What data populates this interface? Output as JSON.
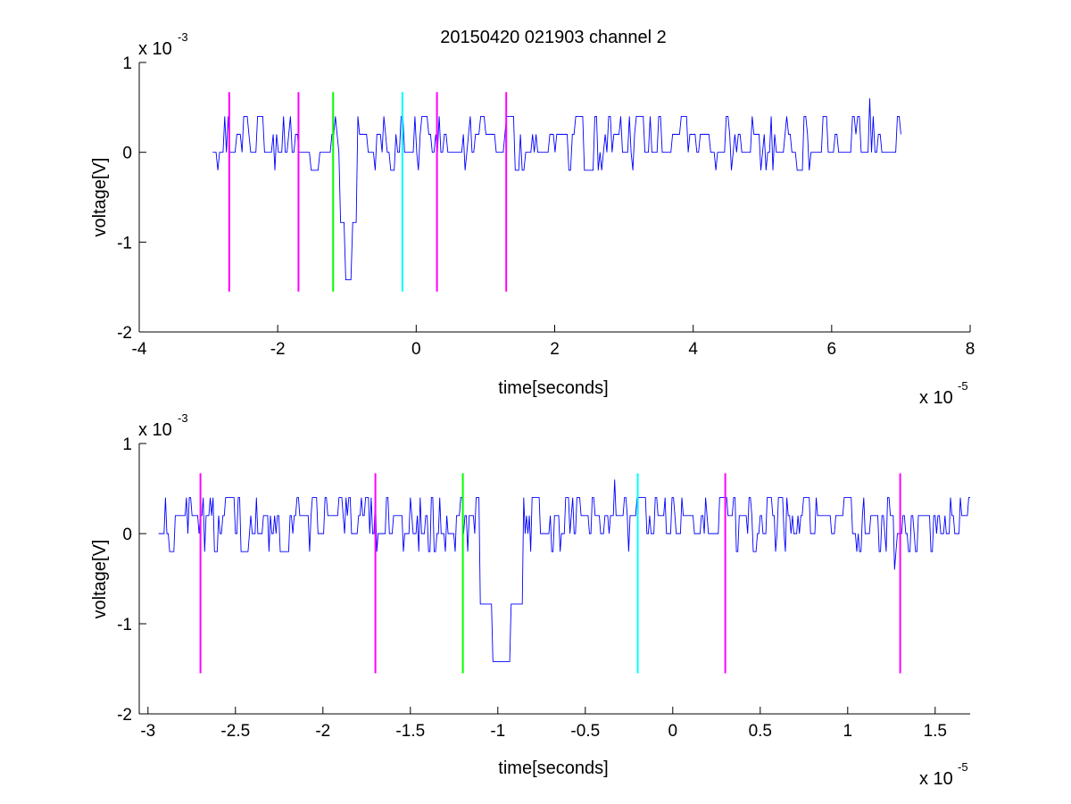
{
  "title": "20150420 021903 channel 2",
  "colors": {
    "signal": "#0000ff",
    "magenta_marker": "#ff00ff",
    "green_marker": "#00ff00",
    "cyan_marker": "#00ffff",
    "axis": "#000000",
    "background": "#ffffff"
  },
  "chart_data": [
    {
      "type": "line",
      "title": "20150420 021903 channel 2",
      "xlabel": "time[seconds]",
      "ylabel": "voltage[V]",
      "x_exponent_base": "x 10",
      "x_exponent_power": "-5",
      "y_exponent_base": "x 10",
      "y_exponent_power": "-3",
      "xlim": [
        -4,
        8
      ],
      "ylim": [
        -2,
        1
      ],
      "x_unit_scale": 1e-05,
      "y_unit_scale": 0.001,
      "xticks": [
        -4,
        -2,
        0,
        2,
        4,
        6,
        8
      ],
      "xtick_labels": [
        "-4",
        "-2",
        "0",
        "2",
        "4",
        "6",
        "8"
      ],
      "yticks": [
        -2,
        -1,
        0,
        1
      ],
      "ytick_labels": [
        "-2",
        "-1",
        "0",
        "1"
      ],
      "grid": false,
      "series": [
        {
          "color": "#0000ff",
          "x_range": [
            -2.94,
            7.0
          ],
          "baseline": 0.1,
          "levels": [
            -0.2,
            0,
            0.2,
            0.4
          ],
          "features": [
            {
              "x": -0.98,
              "y": -1.42,
              "description": "negative spike"
            },
            {
              "x": 6.55,
              "y": 0.6
            }
          ]
        }
      ],
      "markers": [
        {
          "x": -2.7,
          "color": "#ff00ff",
          "y_range": [
            -1.55,
            0.67
          ]
        },
        {
          "x": -1.7,
          "color": "#ff00ff",
          "y_range": [
            -1.55,
            0.67
          ]
        },
        {
          "x": -1.2,
          "color": "#00ff00",
          "y_range": [
            -1.55,
            0.67
          ]
        },
        {
          "x": -0.2,
          "color": "#00ffff",
          "y_range": [
            -1.55,
            0.67
          ]
        },
        {
          "x": 0.3,
          "color": "#ff00ff",
          "y_range": [
            -1.55,
            0.67
          ]
        },
        {
          "x": 1.3,
          "color": "#ff00ff",
          "y_range": [
            -1.55,
            0.67
          ]
        }
      ]
    },
    {
      "type": "line",
      "title": "",
      "xlabel": "time[seconds]",
      "ylabel": "voltage[V]",
      "x_exponent_base": "x 10",
      "x_exponent_power": "-5",
      "y_exponent_base": "x 10",
      "y_exponent_power": "-3",
      "xlim": [
        -3.05,
        1.7
      ],
      "ylim": [
        -2,
        1
      ],
      "x_unit_scale": 1e-05,
      "y_unit_scale": 0.001,
      "xticks": [
        -3,
        -2.5,
        -2,
        -1.5,
        -1,
        -0.5,
        0,
        0.5,
        1,
        1.5
      ],
      "xtick_labels": [
        "-3",
        "-2.5",
        "-2",
        "-1.5",
        "-1",
        "-0.5",
        "0",
        "0.5",
        "1",
        "1.5"
      ],
      "yticks": [
        -2,
        -1,
        0,
        1
      ],
      "ytick_labels": [
        "-2",
        "-1",
        "0",
        "1"
      ],
      "grid": false,
      "series": [
        {
          "color": "#0000ff",
          "x_range": [
            -2.94,
            1.7
          ],
          "baseline": 0.1,
          "levels": [
            -0.2,
            0,
            0.2,
            0.4
          ],
          "features": [
            {
              "x": -0.98,
              "y": -1.42,
              "description": "negative spike"
            },
            {
              "x": -0.33,
              "y": 0.6
            },
            {
              "x": 1.27,
              "y": -0.4
            }
          ]
        }
      ],
      "markers": [
        {
          "x": -2.7,
          "color": "#ff00ff",
          "y_range": [
            -1.55,
            0.67
          ]
        },
        {
          "x": -1.7,
          "color": "#ff00ff",
          "y_range": [
            -1.55,
            0.67
          ]
        },
        {
          "x": -1.2,
          "color": "#00ff00",
          "y_range": [
            -1.55,
            0.67
          ]
        },
        {
          "x": -0.2,
          "color": "#00ffff",
          "y_range": [
            -1.55,
            0.67
          ]
        },
        {
          "x": 0.3,
          "color": "#ff00ff",
          "y_range": [
            -1.55,
            0.67
          ]
        },
        {
          "x": 1.3,
          "color": "#ff00ff",
          "y_range": [
            -1.55,
            0.67
          ]
        }
      ]
    }
  ]
}
